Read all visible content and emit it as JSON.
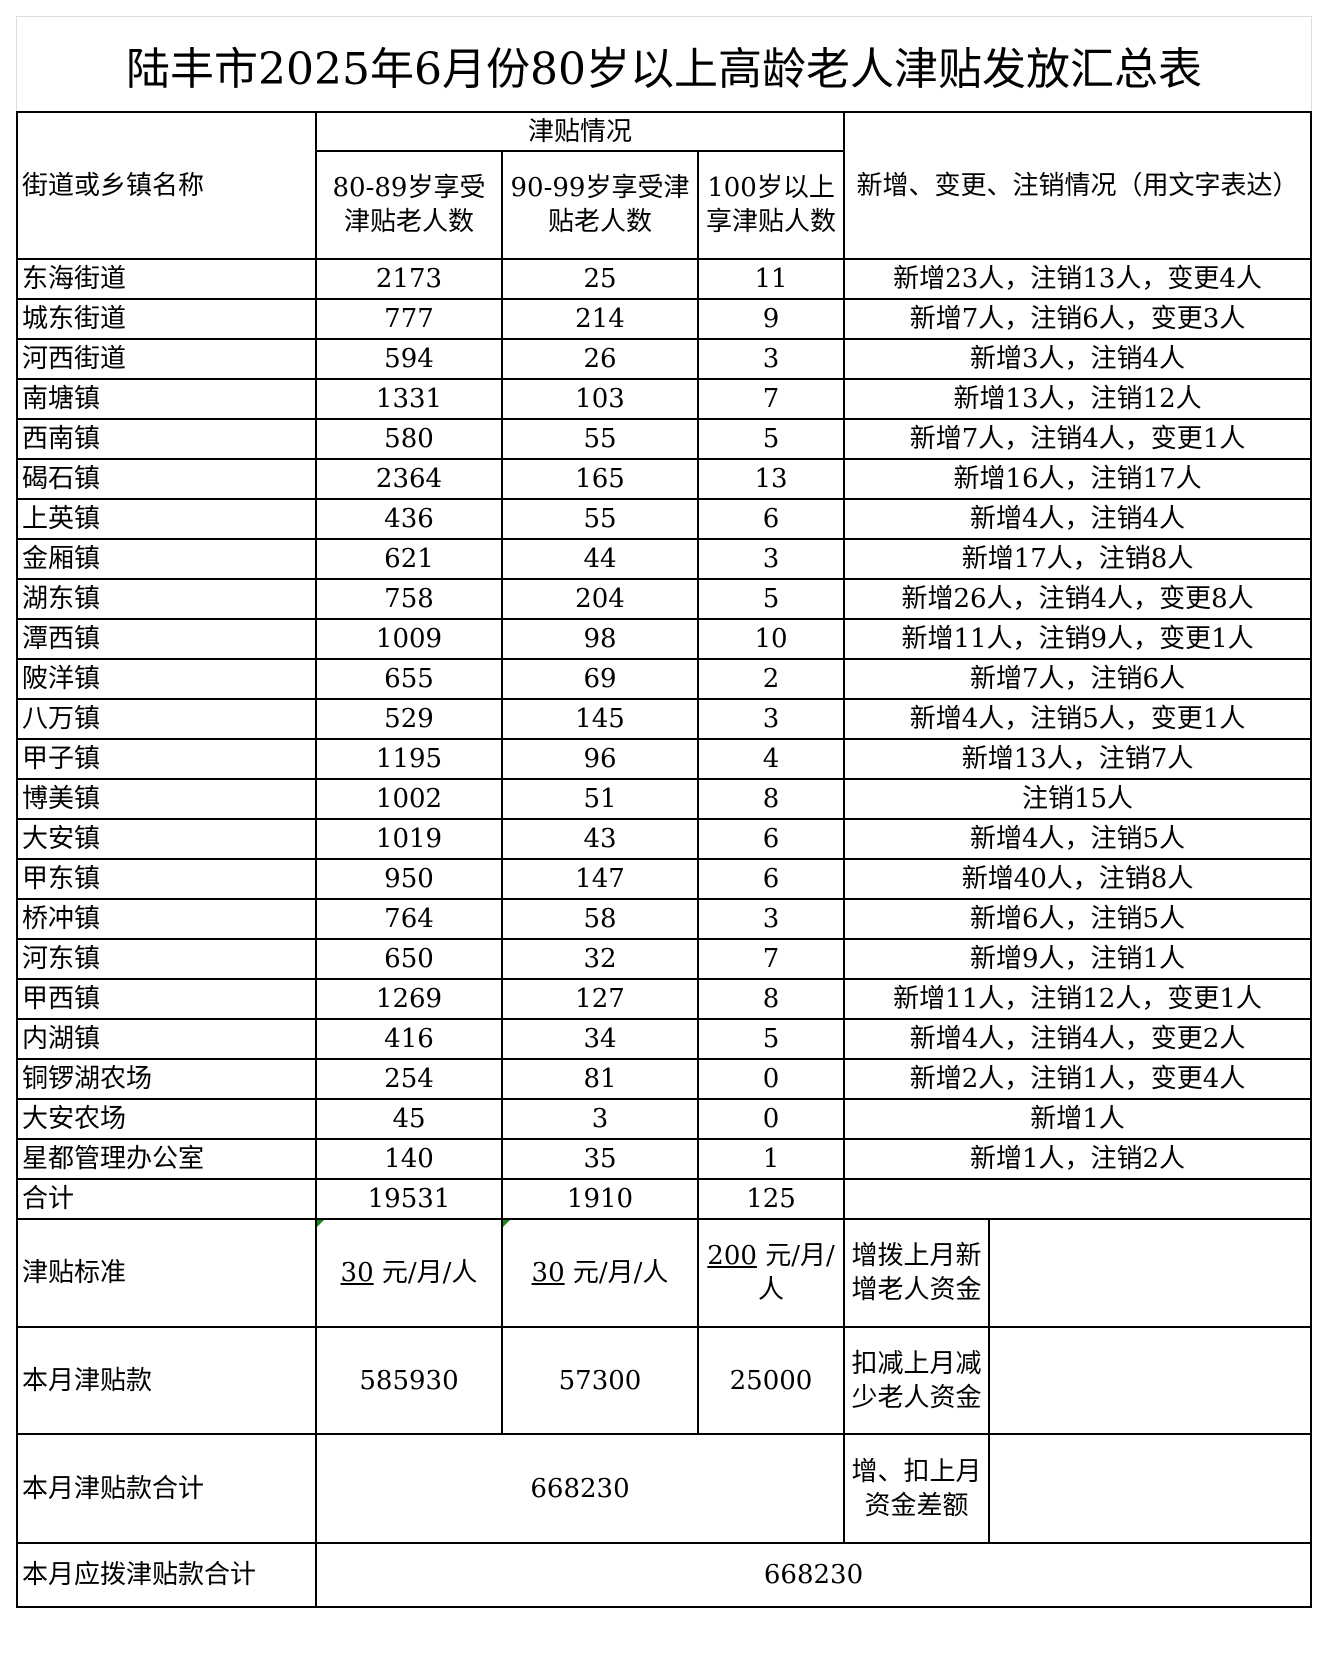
{
  "title": "陆丰市2025年6月份80岁以上高龄老人津贴发放汇总表",
  "header": {
    "name_col": "街道或乡镇名称",
    "group": "津贴情况",
    "col1": "80-89岁享受津贴老人数",
    "col2": "90-99岁享受津贴老人数",
    "col3": "100岁以上享津贴人数",
    "notes_col": "新增、变更、注销情况（用文字表达）"
  },
  "rows": [
    {
      "name": "东海街道",
      "c1": "2173",
      "c2": "25",
      "c3": "11",
      "note": "新增23人，注销13人，变更4人"
    },
    {
      "name": "城东街道",
      "c1": "777",
      "c2": "214",
      "c3": "9",
      "note": "新增7人，注销6人，变更3人"
    },
    {
      "name": "河西街道",
      "c1": "594",
      "c2": "26",
      "c3": "3",
      "note": "新增3人，注销4人"
    },
    {
      "name": "南塘镇",
      "c1": "1331",
      "c2": "103",
      "c3": "7",
      "note": "新增13人，注销12人"
    },
    {
      "name": "西南镇",
      "c1": "580",
      "c2": "55",
      "c3": "5",
      "note": "新增7人，注销4人，变更1人"
    },
    {
      "name": "碣石镇",
      "c1": "2364",
      "c2": "165",
      "c3": "13",
      "note": "新增16人，注销17人"
    },
    {
      "name": "上英镇",
      "c1": "436",
      "c2": "55",
      "c3": "6",
      "note": "新增4人，注销4人"
    },
    {
      "name": "金厢镇",
      "c1": "621",
      "c2": "44",
      "c3": "3",
      "note": "新增17人，注销8人"
    },
    {
      "name": "湖东镇",
      "c1": "758",
      "c2": "204",
      "c3": "5",
      "note": "新增26人，注销4人，变更8人"
    },
    {
      "name": "潭西镇",
      "c1": "1009",
      "c2": "98",
      "c3": "10",
      "note": "新增11人，注销9人，变更1人"
    },
    {
      "name": "陂洋镇",
      "c1": "655",
      "c2": "69",
      "c3": "2",
      "note": "新增7人，注销6人"
    },
    {
      "name": "八万镇",
      "c1": "529",
      "c2": "145",
      "c3": "3",
      "note": "新增4人，注销5人，变更1人"
    },
    {
      "name": "甲子镇",
      "c1": "1195",
      "c2": "96",
      "c3": "4",
      "note": "新增13人，注销7人"
    },
    {
      "name": "博美镇",
      "c1": "1002",
      "c2": "51",
      "c3": "8",
      "note": "注销15人"
    },
    {
      "name": "大安镇",
      "c1": "1019",
      "c2": "43",
      "c3": "6",
      "note": "新增4人，注销5人"
    },
    {
      "name": "甲东镇",
      "c1": "950",
      "c2": "147",
      "c3": "6",
      "note": "新增40人，注销8人"
    },
    {
      "name": "桥冲镇",
      "c1": "764",
      "c2": "58",
      "c3": "3",
      "note": "新增6人，注销5人"
    },
    {
      "name": "河东镇",
      "c1": "650",
      "c2": "32",
      "c3": "7",
      "note": "新增9人，注销1人"
    },
    {
      "name": "甲西镇",
      "c1": "1269",
      "c2": "127",
      "c3": "8",
      "note": "新增11人，注销12人，变更1人"
    },
    {
      "name": "内湖镇",
      "c1": "416",
      "c2": "34",
      "c3": "5",
      "note": "新增4人，注销4人，变更2人"
    },
    {
      "name": "铜锣湖农场",
      "c1": "254",
      "c2": "81",
      "c3": "0",
      "note": "新增2人，注销1人，变更4人"
    },
    {
      "name": "大安农场",
      "c1": "45",
      "c2": "3",
      "c3": "0",
      "note": "新增1人"
    },
    {
      "name": "星都管理办公室",
      "c1": "140",
      "c2": "35",
      "c3": "1",
      "note": "新增1人，注销2人"
    }
  ],
  "total": {
    "name": "合计",
    "c1": "19531",
    "c2": "1910",
    "c3": "125"
  },
  "standard": {
    "label": "津贴标准",
    "c1_amount": "30",
    "c1_unit": "元/月/人",
    "c2_amount": "30",
    "c2_unit": "元/月/人",
    "c3_amount": "200",
    "c3_unit": "元/月/人",
    "side_label": "增拨上月新增老人资金",
    "side_value": ""
  },
  "monthly": {
    "label": "本月津贴款",
    "c1": "585930",
    "c2": "57300",
    "c3": "25000",
    "side_label": "扣减上月减少老人资金",
    "side_value": ""
  },
  "monthly_total": {
    "label": "本月津贴款合计",
    "value": "668230",
    "side_label": "增、扣上月资金差额",
    "side_value": ""
  },
  "payable_total": {
    "label": "本月应拨津贴款合计",
    "value": "668230"
  }
}
